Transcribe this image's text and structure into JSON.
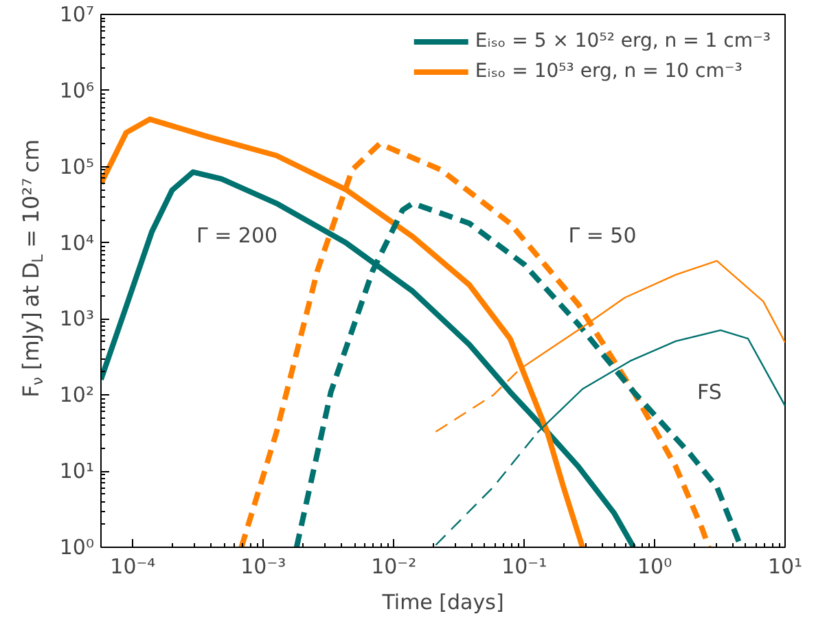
{
  "chart_data": {
    "type": "line",
    "xlabel": "Time [days]",
    "ylabel": "F$_{ν}$ [mJy] at D$_{L}$ = 10²⁷ cm",
    "log": "xy",
    "xlim": [
      5.7e-05,
      10
    ],
    "ylim": [
      1,
      10000000
    ],
    "xticks": [
      {
        "value": 0.0001,
        "label": "10⁻⁴"
      },
      {
        "value": 0.001,
        "label": "10⁻³"
      },
      {
        "value": 0.01,
        "label": "10⁻²"
      },
      {
        "value": 0.1,
        "label": "10⁻¹"
      },
      {
        "value": 1,
        "label": "10⁰"
      },
      {
        "value": 10,
        "label": "10¹"
      }
    ],
    "yticks": [
      {
        "value": 1,
        "label": "10⁰"
      },
      {
        "value": 10,
        "label": "10¹"
      },
      {
        "value": 100,
        "label": "10²"
      },
      {
        "value": 1000,
        "label": "10³"
      },
      {
        "value": 10000,
        "label": "10⁴"
      },
      {
        "value": 100000,
        "label": "10⁵"
      },
      {
        "value": 1000000,
        "label": "10⁶"
      },
      {
        "value": 10000000,
        "label": "10⁷"
      }
    ],
    "grid": false,
    "legend": "top right",
    "marker": "none",
    "series": [
      {
        "name": "Eᵢₛₒ = 5 × 10⁵² erg, n = 1 cm⁻³",
        "color": "#00726f",
        "line_style": "solid",
        "x": [
          5.7e-05,
          8.7e-05,
          0.00014,
          0.0002,
          0.00029,
          0.00048,
          0.00126,
          0.0043,
          0.014,
          0.038,
          0.078,
          0.15,
          0.26,
          0.49,
          0.69
        ],
        "values": [
          160,
          1300,
          14000,
          49000,
          85000,
          69000,
          33000,
          10000,
          2300,
          460,
          110,
          33,
          11.5,
          2.8,
          1
        ]
      },
      {
        "name": "Eᵢₛₒ = 10⁵³ erg, n = 10 cm⁻³",
        "color": "#ff8000",
        "line_style": "solid",
        "x": [
          5.7e-05,
          8.9e-05,
          0.000135,
          0.00037,
          0.00126,
          0.0043,
          0.014,
          0.038,
          0.078,
          0.15,
          0.2,
          0.28
        ],
        "values": [
          60000,
          280000,
          420000,
          250000,
          140000,
          50000,
          12000,
          2800,
          550,
          33,
          6.2,
          1
        ]
      },
      {
        "color": "#ff8000",
        "line_style": "dashed",
        "x": [
          0.00068,
          0.00126,
          0.0026,
          0.0048,
          0.0078,
          0.023,
          0.078,
          0.26,
          0.69,
          1.45,
          2.3,
          2.6
        ],
        "values": [
          1,
          32,
          4300,
          91000,
          200000,
          91000,
          18000,
          1550,
          110,
          11.5,
          1.8,
          1
        ]
      },
      {
        "color": "#00726f",
        "line_style": "dashed",
        "x": [
          0.0018,
          0.0033,
          0.0069,
          0.0117,
          0.014,
          0.038,
          0.1,
          0.26,
          0.69,
          1.86,
          3.0,
          4.6
        ],
        "values": [
          1,
          110,
          4300,
          27000,
          33000,
          18000,
          5200,
          850,
          110,
          17,
          6.2,
          1
        ]
      },
      {
        "color": "#00726f",
        "line_style": "dashed",
        "x": [
          0.021,
          0.058,
          0.126
        ],
        "values": [
          1.07,
          6.2,
          32
        ]
      },
      {
        "color": "#00726f",
        "line_style": "solid",
        "x": [
          0.126,
          0.28,
          0.65,
          1.45,
          3.2,
          5.2,
          10
        ],
        "values": [
          32,
          120,
          280,
          510,
          710,
          550,
          72
        ]
      },
      {
        "color": "#ff8000",
        "line_style": "dashed",
        "x": [
          0.021,
          0.058,
          0.093
        ],
        "values": [
          33,
          100,
          220
        ]
      },
      {
        "color": "#ff8000",
        "line_style": "solid",
        "x": [
          0.093,
          0.28,
          0.59,
          1.45,
          3.0,
          6.8,
          10
        ],
        "values": [
          220,
          780,
          1900,
          3800,
          5800,
          1700,
          490
        ]
      }
    ],
    "annotations": [
      "Γ = 200",
      "Γ = 50",
      "FS"
    ]
  }
}
